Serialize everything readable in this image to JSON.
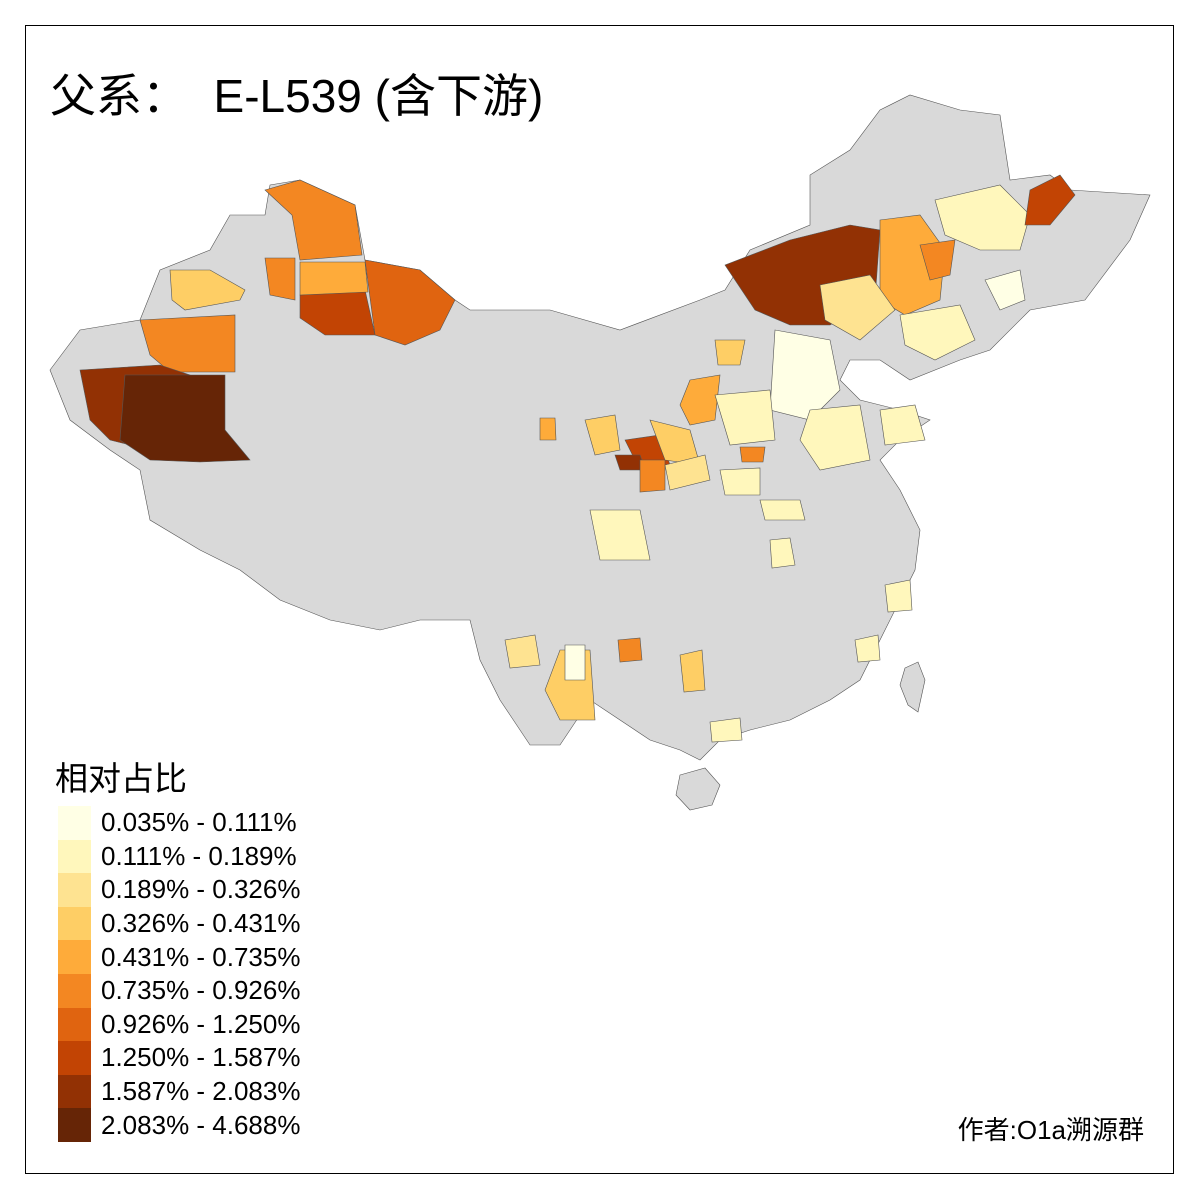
{
  "title": "父系：  E-L539 (含下游)",
  "legend": {
    "title": "相对占比",
    "items": [
      {
        "label": "0.035% - 0.111%",
        "color": "#FFFFE5"
      },
      {
        "label": "0.111% - 0.189%",
        "color": "#FFF7BC"
      },
      {
        "label": "0.189% - 0.326%",
        "color": "#FEE391"
      },
      {
        "label": "0.326% - 0.431%",
        "color": "#FECE65"
      },
      {
        "label": "0.431% - 0.735%",
        "color": "#FEAB3A"
      },
      {
        "label": "0.735% - 0.926%",
        "color": "#F38722"
      },
      {
        "label": "0.926% - 1.250%",
        "color": "#E06410"
      },
      {
        "label": "1.250% - 1.587%",
        "color": "#C24404"
      },
      {
        "label": "1.587% - 2.083%",
        "color": "#923104"
      },
      {
        "label": "2.083% - 4.688%",
        "color": "#662506"
      }
    ]
  },
  "no_data_color": "#D9D9D9",
  "credit": "作者:O1a溯源群"
}
